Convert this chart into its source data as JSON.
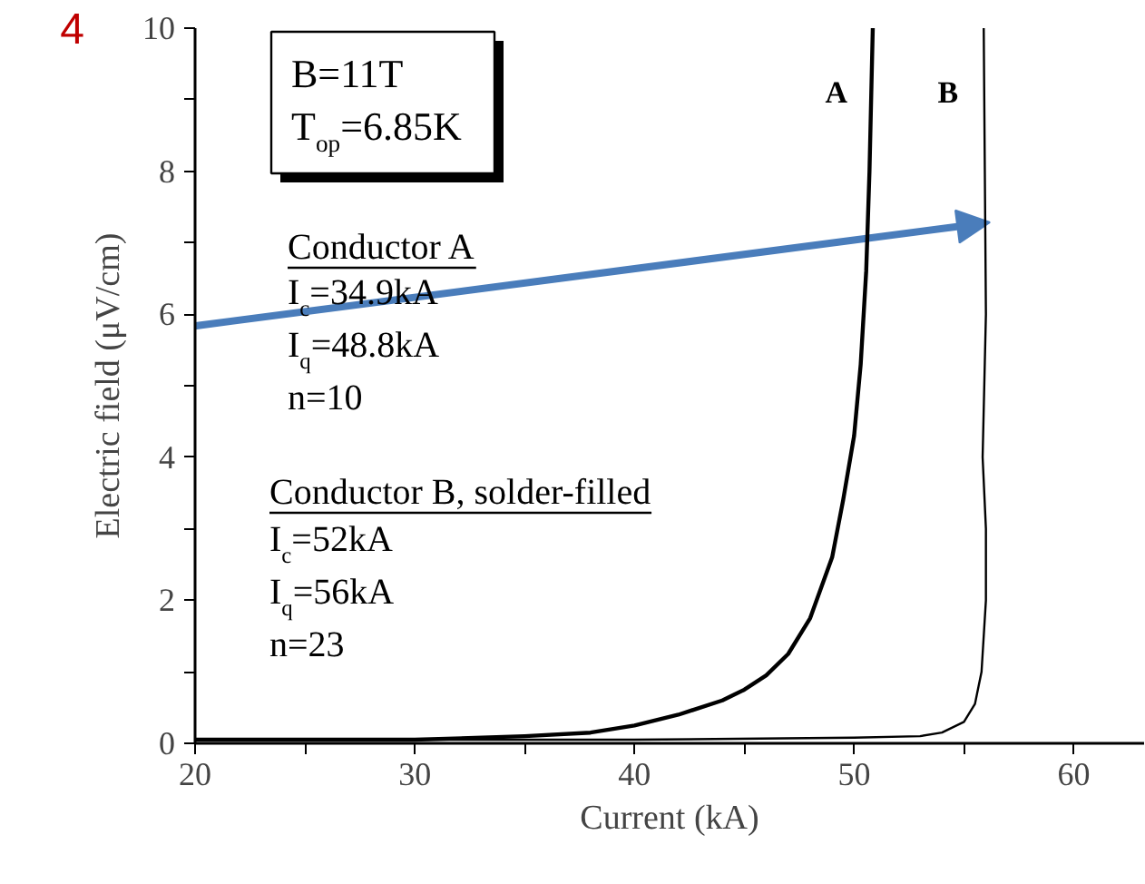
{
  "chart_data": {
    "type": "line",
    "xlabel": "Current (kA)",
    "ylabel": "Electric field (μV/cm)",
    "xlim": [
      20,
      63.2
    ],
    "ylim": [
      0,
      10
    ],
    "xticks": [
      20,
      {
        "value": 25,
        "label": null
      },
      30,
      {
        "value": 35,
        "label": null
      },
      40,
      {
        "value": 45,
        "label": null
      },
      50,
      {
        "value": 55,
        "label": null
      },
      60
    ],
    "yticks": [
      0,
      {
        "value": 1,
        "label": null
      },
      2,
      {
        "value": 3,
        "label": null
      },
      4,
      {
        "value": 5,
        "label": null
      },
      6,
      {
        "value": 7,
        "label": null
      },
      8,
      {
        "value": 9,
        "label": null
      },
      10
    ],
    "line_style": "solid",
    "series": [
      {
        "name": "A",
        "color": "#000000",
        "x": [
          20,
          25,
          30,
          35,
          38,
          40,
          42,
          44,
          45,
          46,
          47,
          48,
          49,
          49.5,
          50,
          50.3,
          50.55,
          50.7,
          50.85
        ],
        "values": [
          0.05,
          0.05,
          0.05,
          0.1,
          0.15,
          0.25,
          0.4,
          0.6,
          0.75,
          0.95,
          1.25,
          1.75,
          2.6,
          3.4,
          4.3,
          5.3,
          6.6,
          8.0,
          10
        ]
      },
      {
        "name": "B",
        "color": "#000000",
        "x": [
          20,
          30,
          40,
          50,
          53,
          54,
          55,
          55.5,
          55.8,
          56,
          56,
          55.85,
          56,
          55.95,
          55.9
        ],
        "values": [
          0.05,
          0.05,
          0.05,
          0.08,
          0.1,
          0.15,
          0.3,
          0.55,
          1.0,
          2.0,
          3.0,
          4.0,
          6.0,
          8.0,
          10
        ]
      }
    ],
    "annotations": [
      "B=11T",
      "T$_{op}$=6.85K",
      "Conductor A",
      "I$_{c}$=34.9kA",
      "I$_{q}$=48.8kA",
      "n=10",
      "Conductor B, solder-filled",
      "I$_{c}$=52kA",
      "I$_{q}$=56kA",
      "n=23",
      "4"
    ]
  }
}
